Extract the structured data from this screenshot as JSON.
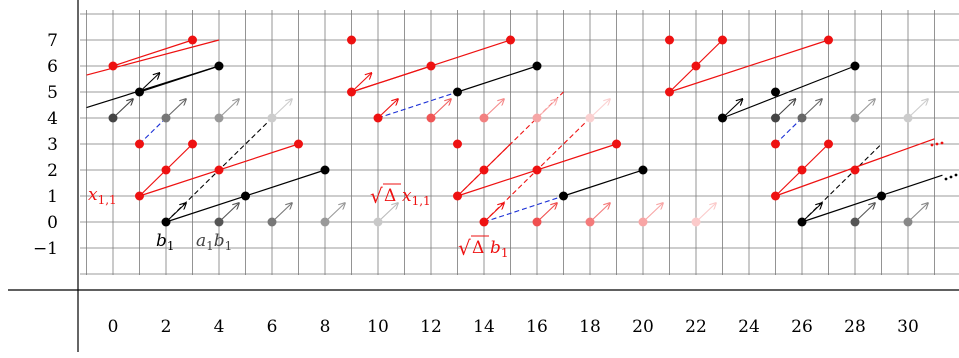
{
  "y_axis": {
    "ticks": [
      "7",
      "6",
      "5",
      "4",
      "3",
      "2",
      "1",
      "0",
      "−1"
    ]
  },
  "x_axis": {
    "ticks": [
      "0",
      "2",
      "4",
      "6",
      "8",
      "10",
      "12",
      "14",
      "16",
      "18",
      "20",
      "22",
      "24",
      "26",
      "28",
      "30"
    ]
  },
  "annotations": {
    "x11": "x",
    "x11_sub": "1,1",
    "b1": "b",
    "b1_sub": "1",
    "a1b1_a": "a",
    "a1b1_a_sub": "1",
    "a1b1_b": "b",
    "a1b1_b_sub": "1",
    "sqrt_symbol": "√",
    "delta": "Δ",
    "sdx_x": "x",
    "sdx_sub": "1,1",
    "sdb_b": "b",
    "sdb_sub": "1"
  },
  "colors": {
    "red": "#ee1111",
    "black": "#000000",
    "blue": "#1a2fd6",
    "grid": "#7a7a7a"
  }
}
